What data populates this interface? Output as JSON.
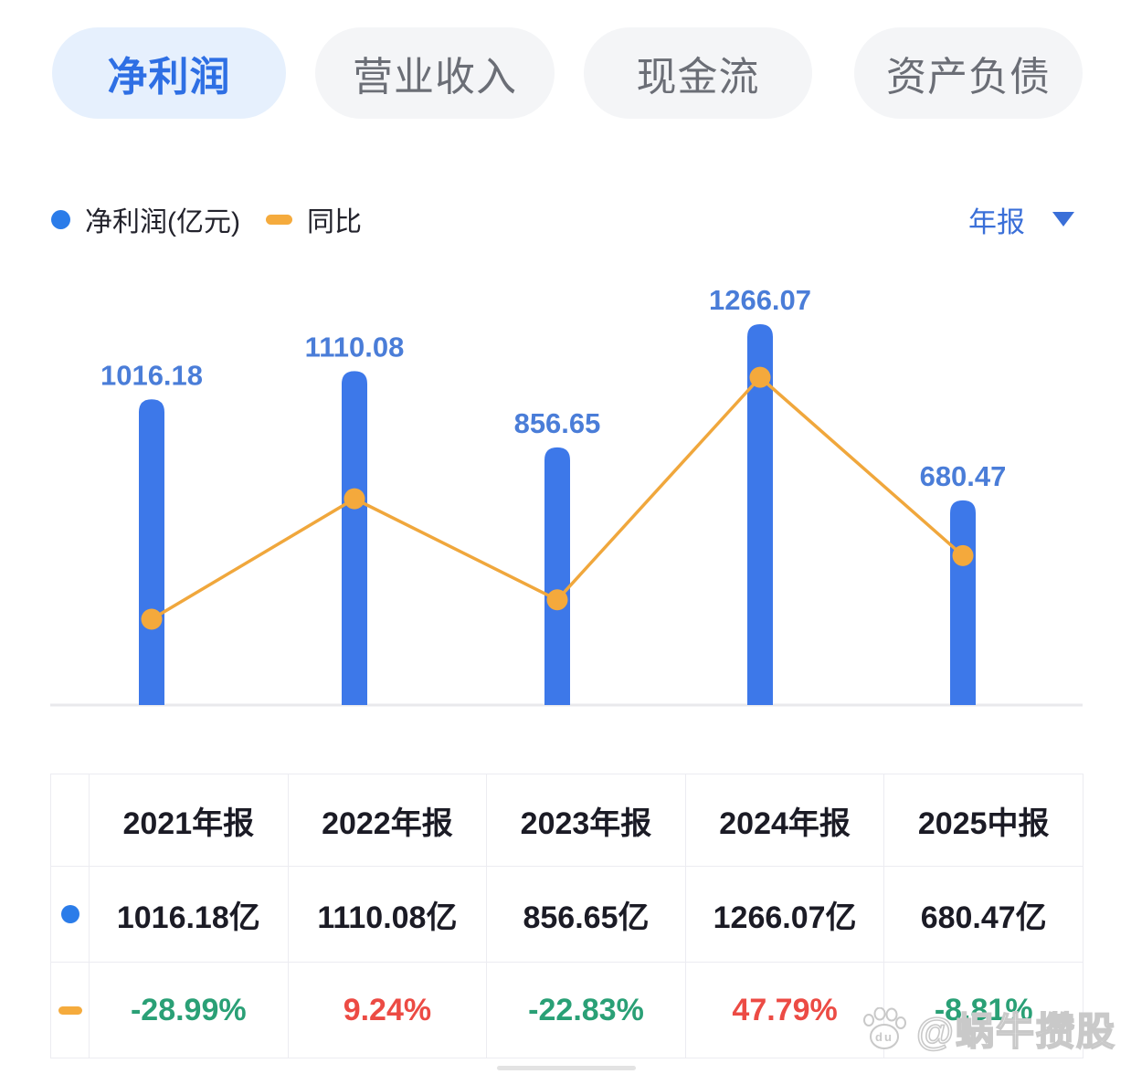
{
  "tabs": [
    {
      "label": "净利润",
      "active": true
    },
    {
      "label": "营业收入",
      "active": false
    },
    {
      "label": "现金流",
      "active": false
    },
    {
      "label": "资产负债",
      "active": false
    }
  ],
  "legend": {
    "series1": "净利润(亿元)",
    "series2": "同比",
    "period_selector": "年报"
  },
  "colors": {
    "bar_blue": "#3d78e9",
    "legend_dot_blue": "#2b7ce9",
    "line_orange": "#f0a73c",
    "dot_orange": "#f4a93c",
    "bar_label_blue": "#4a7dd8",
    "active_tab_bg": "#e6f0fd",
    "active_tab_text": "#2e6fe4",
    "inactive_tab_bg": "#f4f5f7",
    "inactive_tab_text": "#6b6e76",
    "positive_red": "#ec4b44",
    "negative_green": "#2aa076",
    "table_text": "#1b1b25",
    "baseline_gray": "#e9e9ec",
    "period_text_blue": "#3a6fd8"
  },
  "chart_data": {
    "type": "bar",
    "subtype": "bar+line combo",
    "categories": [
      "2021年报",
      "2022年报",
      "2023年报",
      "2024年报",
      "2025中报"
    ],
    "series": [
      {
        "name": "净利润(亿元)",
        "type": "bar",
        "unit": "亿",
        "values": [
          1016.18,
          1110.08,
          856.65,
          1266.07,
          680.47
        ]
      },
      {
        "name": "同比",
        "type": "line",
        "unit": "%",
        "values": [
          -28.99,
          9.24,
          -22.83,
          47.79,
          -8.81
        ]
      }
    ],
    "bar_labels": [
      "1016.18",
      "1110.08",
      "856.65",
      "1266.07",
      "680.47"
    ],
    "title": "",
    "xlabel": "",
    "ylabel": "",
    "grid": false,
    "axes_visible": false,
    "legend_position": "top-left"
  },
  "table": {
    "headers": [
      "",
      "2021年报",
      "2022年报",
      "2023年报",
      "2024年报",
      "2025中报"
    ],
    "rows": [
      {
        "marker": "blue-dot",
        "cells": [
          "1016.18亿",
          "1110.08亿",
          "856.65亿",
          "1266.07亿",
          "680.47亿"
        ]
      },
      {
        "marker": "orange-dash",
        "cells": [
          "-28.99%",
          "9.24%",
          "-22.83%",
          "47.79%",
          "-8.81%"
        ],
        "cell_colors": [
          "green",
          "red",
          "green",
          "red",
          "green"
        ]
      }
    ]
  },
  "watermark": {
    "text": "@蜗牛攒股"
  }
}
